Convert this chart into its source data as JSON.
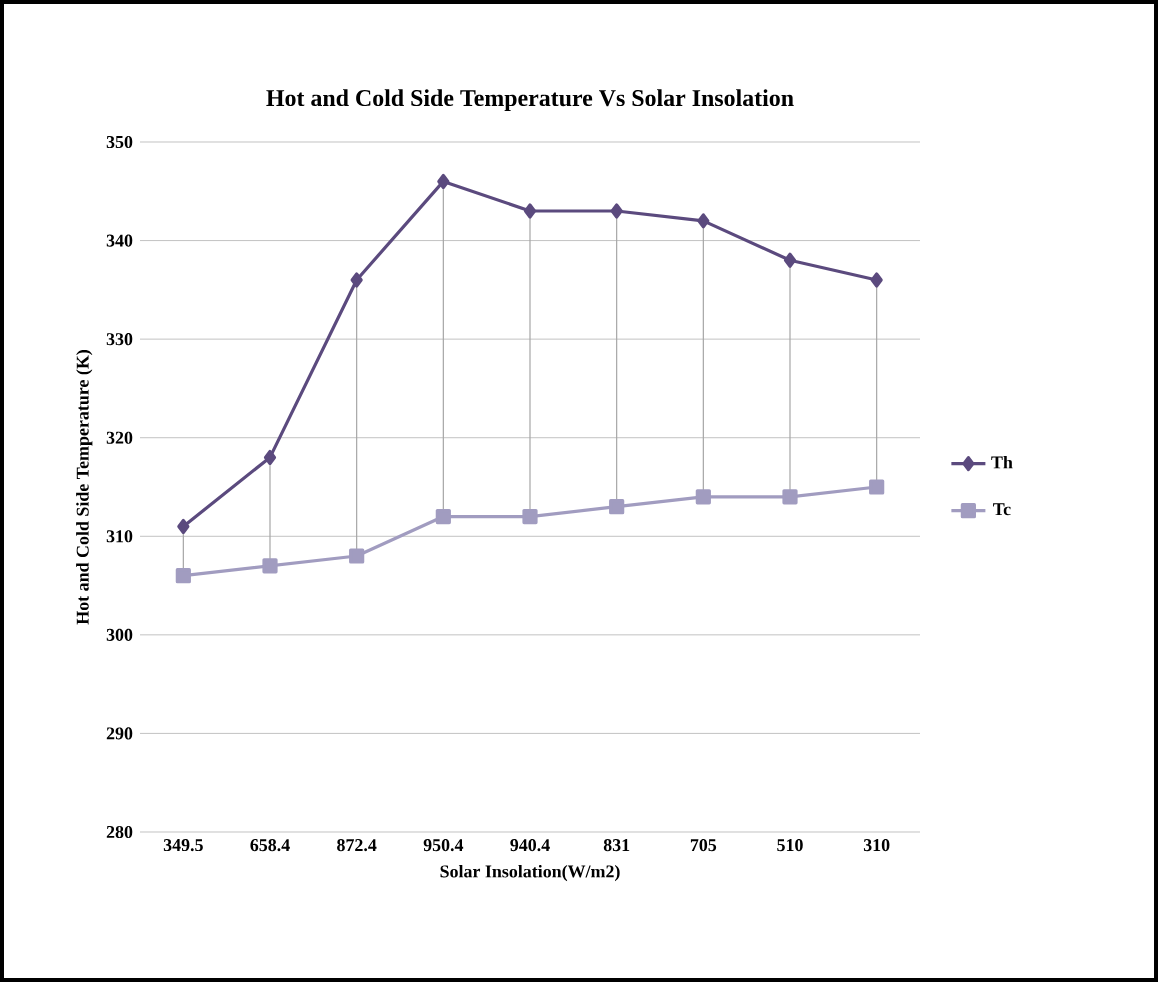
{
  "chart_data": {
    "type": "line",
    "title": "Hot and Cold Side Temperature Vs Solar Insolation",
    "xlabel": "Solar Insolation(W/m2)",
    "ylabel": "Hot and Cold Side Temperature (K)",
    "categories": [
      "349.5",
      "658.4",
      "872.4",
      "950.4",
      "940.4",
      "831",
      "705",
      "510",
      "310"
    ],
    "series": [
      {
        "name": "Th",
        "color": "#5b4a7e",
        "marker": "diamond",
        "values": [
          311,
          318,
          336,
          346,
          343,
          343,
          342,
          338,
          336
        ]
      },
      {
        "name": "Tc",
        "color": "#a19cc0",
        "marker": "square",
        "values": [
          306,
          307,
          308,
          312,
          312,
          313,
          314,
          314,
          315
        ],
        "errors": [
          [
            306,
            311
          ],
          [
            307,
            318
          ],
          [
            308,
            336
          ],
          [
            312,
            346
          ],
          [
            312,
            343
          ],
          [
            313,
            343
          ],
          [
            314,
            342
          ],
          [
            314,
            338
          ],
          [
            315,
            336
          ]
        ]
      }
    ],
    "ylim": [
      280,
      350
    ],
    "yticks": [
      280,
      290,
      300,
      310,
      320,
      330,
      340,
      350
    ],
    "grid": "y",
    "legend": "right"
  }
}
